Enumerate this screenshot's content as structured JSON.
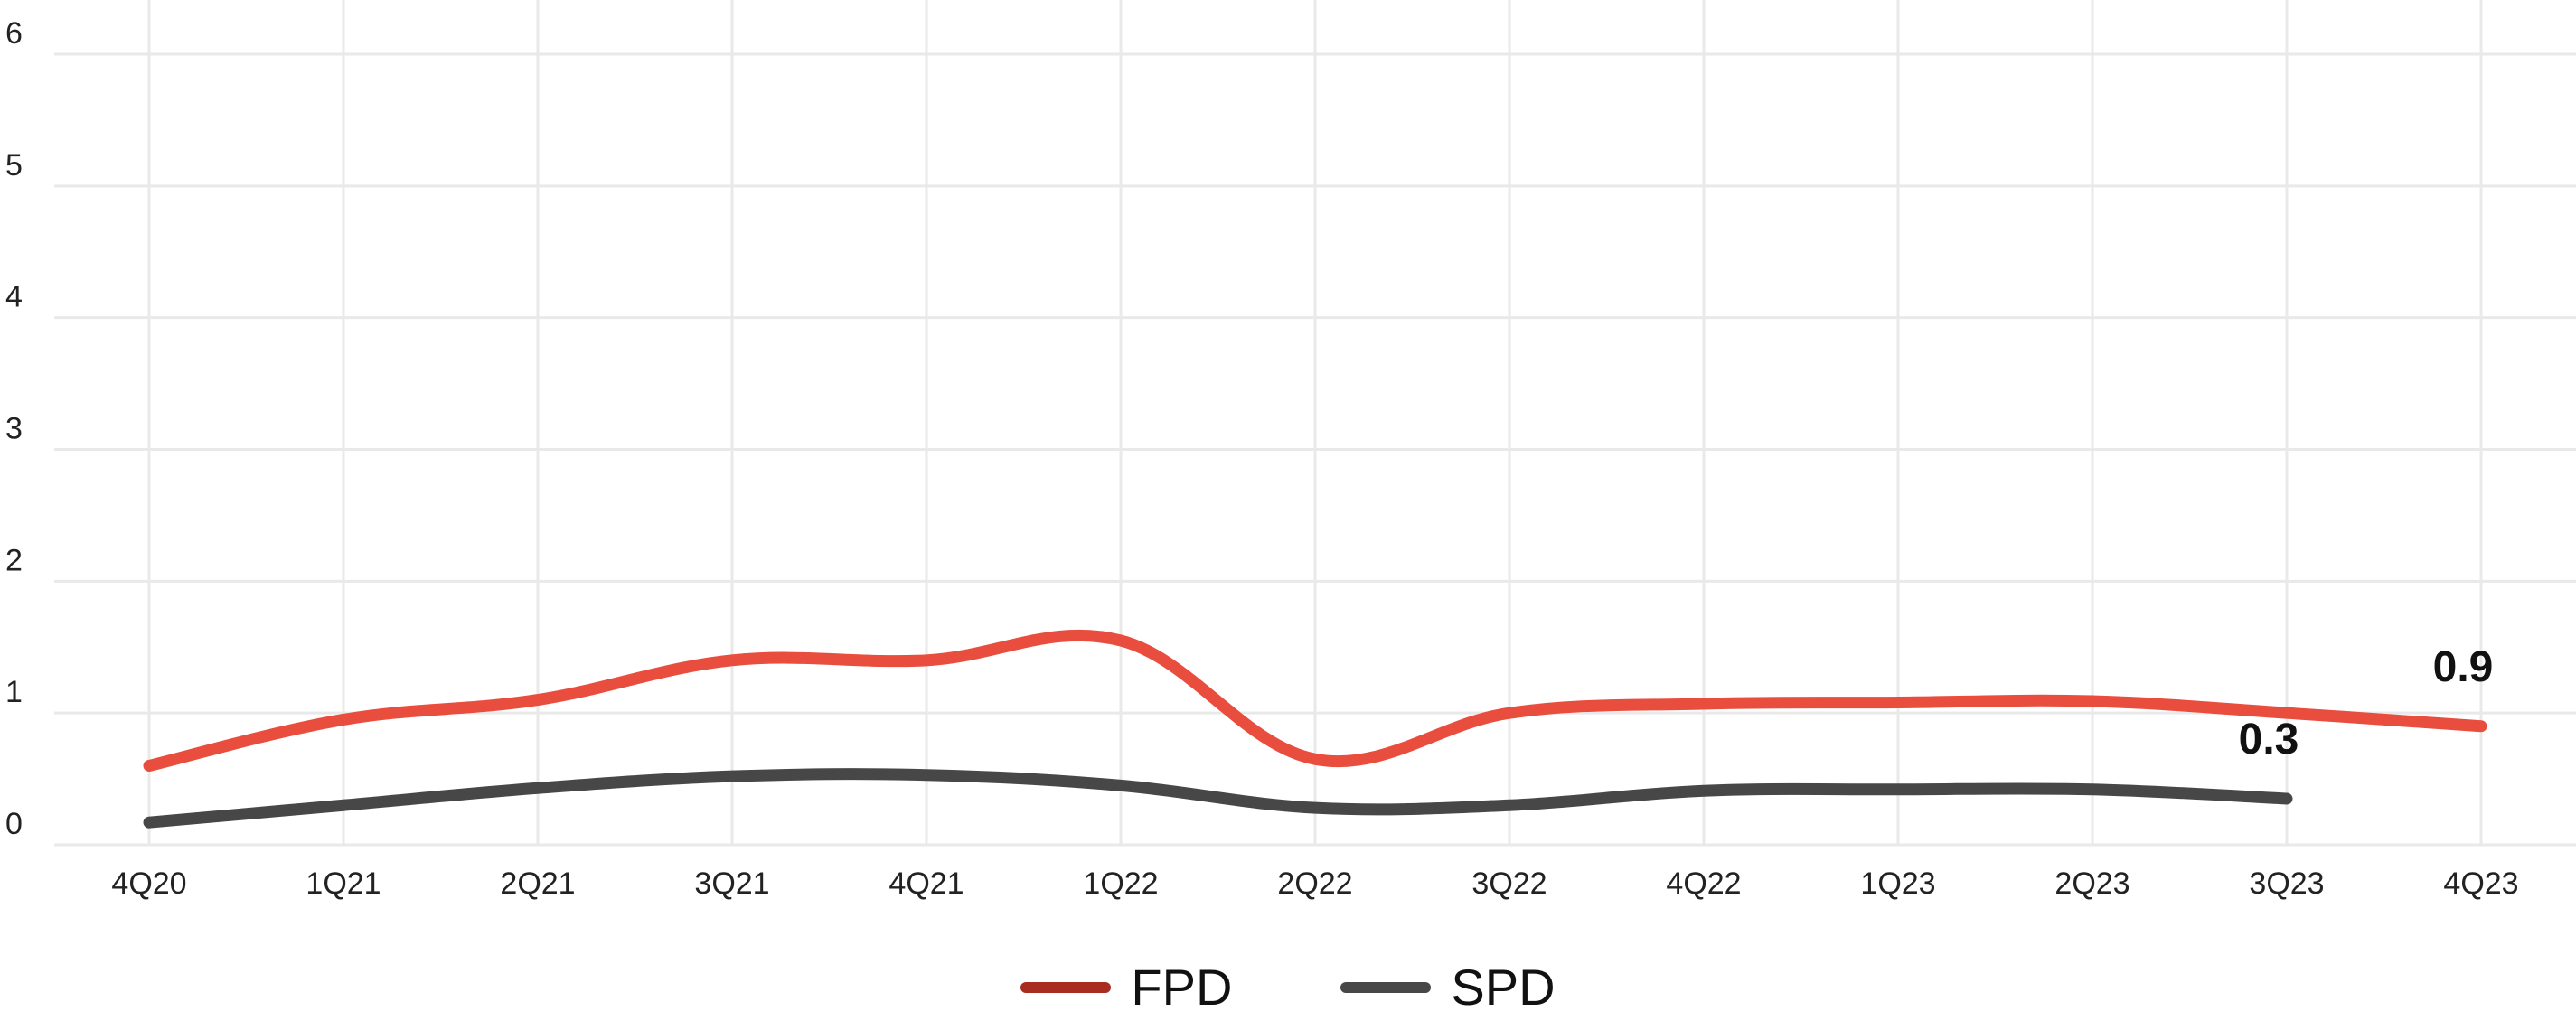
{
  "chart_data": {
    "type": "line",
    "categories": [
      "4Q20",
      "1Q21",
      "2Q21",
      "3Q21",
      "4Q21",
      "1Q22",
      "2Q22",
      "3Q22",
      "4Q22",
      "1Q23",
      "2Q23",
      "3Q23",
      "4Q23"
    ],
    "ylim": [
      0,
      6
    ],
    "yticks": [
      "0",
      "1",
      "2",
      "3",
      "4",
      "5",
      "6"
    ],
    "grid": true,
    "legend_position": "bottom",
    "series": [
      {
        "name": "FPD",
        "color": "#e84d3d",
        "legend_color": "#a82d20",
        "values": [
          0.6,
          0.95,
          1.1,
          1.4,
          1.4,
          1.55,
          0.65,
          1.0,
          1.07,
          1.08,
          1.09,
          1.0,
          0.9
        ],
        "end_label": "0.9"
      },
      {
        "name": "SPD",
        "color": "#474747",
        "legend_color": "#474747",
        "values": [
          0.17,
          0.3,
          0.43,
          0.52,
          0.53,
          0.45,
          0.28,
          0.3,
          0.41,
          0.42,
          0.42,
          0.35,
          null
        ],
        "end_label": "0.3"
      }
    ]
  }
}
